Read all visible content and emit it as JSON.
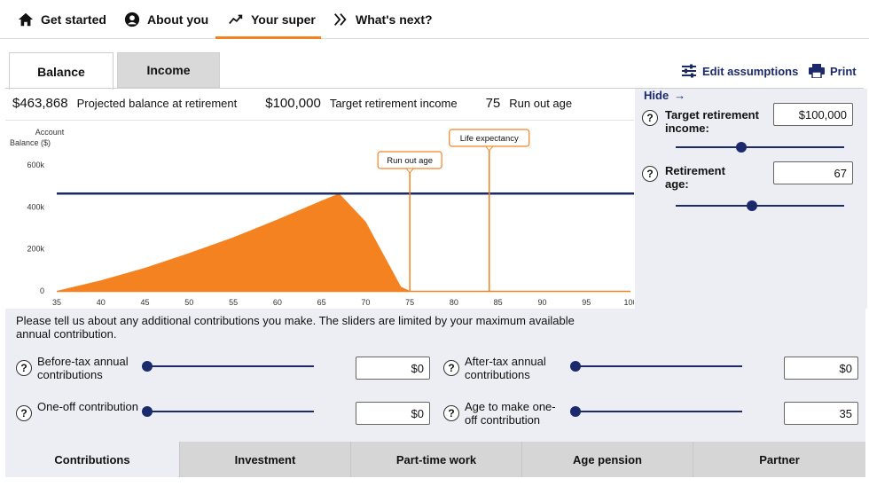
{
  "nav": {
    "items": [
      {
        "label": "Get started",
        "icon": "home-icon"
      },
      {
        "label": "About you",
        "icon": "user-circle-icon"
      },
      {
        "label": "Your super",
        "icon": "trend-line-icon"
      },
      {
        "label": "What's next?",
        "icon": "double-chevron-right-icon"
      }
    ],
    "active_index": 2
  },
  "tabs": {
    "balance": "Balance",
    "income": "Income"
  },
  "toolbar": {
    "edit_assumptions": "Edit assumptions",
    "print": "Print"
  },
  "summary": {
    "balance_value": "$463,868",
    "balance_label": "Projected balance at retirement",
    "income_value": "$100,000",
    "income_label": "Target retirement income",
    "runout_value": "75",
    "runout_label": "Run out age"
  },
  "right_panel": {
    "hide_label": "Hide",
    "hide_arrow": "→",
    "target_label": "Target retirement income:",
    "target_value": "$100,000",
    "target_slider_fraction": 0.38,
    "retirement_label": "Retirement age:",
    "retirement_value": "67",
    "retirement_slider_fraction": 0.45
  },
  "contributions": {
    "intro": "Please tell us about any additional contributions you make. The sliders are limited by your maximum available annual contribution.",
    "before_tax_label": "Before-tax annual contributions",
    "before_tax_value": "$0",
    "after_tax_label": "After-tax annual contributions",
    "after_tax_value": "$0",
    "oneoff_label": "One-off contribution",
    "oneoff_value": "$0",
    "oneoff_age_label": "Age to make one-off contribution",
    "oneoff_age_value": "35"
  },
  "bottom_tabs": [
    "Contributions",
    "Investment",
    "Part-time work",
    "Age pension",
    "Partner"
  ],
  "colors": {
    "accent_orange": "#f58220",
    "navy": "#1b2a6b",
    "panel_bg": "#eceef4"
  },
  "chart_data": {
    "type": "area",
    "ylabel": "Account Balance ($)",
    "y_ticks": [
      "0",
      "200k",
      "400k",
      "600k"
    ],
    "x_ticks": [
      "35",
      "40",
      "45",
      "50",
      "55",
      "60",
      "65",
      "70",
      "75",
      "80",
      "85",
      "90",
      "95",
      "100"
    ],
    "xlim": [
      35,
      100
    ],
    "ylim": [
      0,
      600000
    ],
    "series": [
      {
        "x": [
          35,
          40,
          45,
          50,
          55,
          60,
          65,
          67,
          70,
          74,
          75,
          100
        ],
        "values": [
          0,
          50000,
          110000,
          180000,
          255000,
          340000,
          430000,
          463868,
          330000,
          20000,
          0,
          0
        ]
      }
    ],
    "target_line_value": 463868,
    "markers": [
      {
        "label": "Run out age",
        "x": 75
      },
      {
        "label": "Life expectancy",
        "x": 84
      }
    ]
  }
}
